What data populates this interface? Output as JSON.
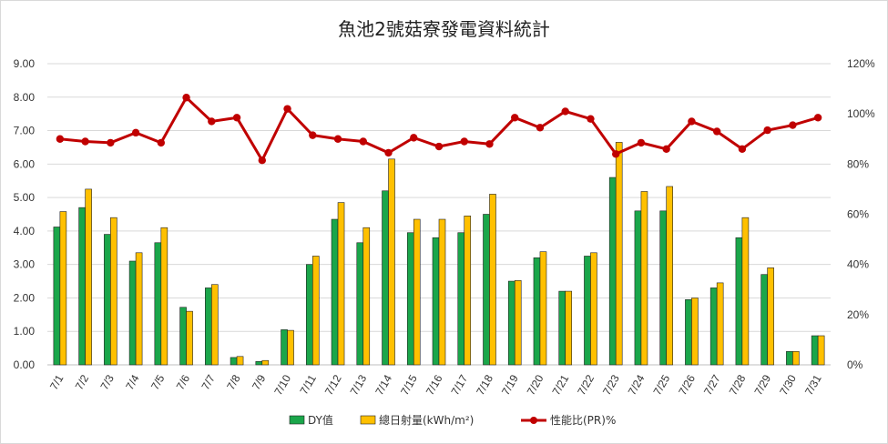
{
  "chart_data": {
    "type": "bar",
    "title": "魚池2號菇寮發電資料統計",
    "categories": [
      "7/1",
      "7/2",
      "7/3",
      "7/4",
      "7/5",
      "7/6",
      "7/7",
      "7/8",
      "7/9",
      "7/10",
      "7/11",
      "7/12",
      "7/13",
      "7/14",
      "7/15",
      "7/16",
      "7/17",
      "7/18",
      "7/19",
      "7/20",
      "7/21",
      "7/22",
      "7/23",
      "7/24",
      "7/25",
      "7/26",
      "7/27",
      "7/28",
      "7/29",
      "7/30",
      "7/31"
    ],
    "series": [
      {
        "name": "DY值",
        "type": "bar",
        "axis": "left",
        "color": "#1aa64a",
        "values": [
          4.12,
          4.7,
          3.9,
          3.1,
          3.65,
          1.72,
          2.3,
          0.22,
          0.1,
          1.05,
          3.0,
          4.35,
          3.65,
          5.2,
          3.95,
          3.8,
          3.95,
          4.5,
          2.5,
          3.2,
          2.2,
          3.25,
          5.6,
          4.6,
          4.6,
          1.95,
          2.3,
          3.8,
          2.7,
          0.4,
          0.87
        ]
      },
      {
        "name": "總日射量(kWh/m²)",
        "type": "bar",
        "axis": "left",
        "color": "#ffc000",
        "values": [
          4.58,
          5.25,
          4.4,
          3.35,
          4.1,
          1.6,
          2.4,
          0.25,
          0.13,
          1.03,
          3.25,
          4.85,
          4.1,
          6.15,
          4.35,
          4.35,
          4.45,
          5.1,
          2.52,
          3.38,
          2.2,
          3.35,
          6.65,
          5.18,
          5.33,
          2.0,
          2.45,
          4.4,
          2.9,
          0.4,
          0.87
        ]
      },
      {
        "name": "性能比(PR)%",
        "type": "line",
        "axis": "right",
        "color": "#c00000",
        "values": [
          90,
          89,
          88.5,
          92.5,
          88.5,
          106.5,
          97,
          98.5,
          81.5,
          102,
          91.5,
          90,
          89,
          84.5,
          90.5,
          87,
          89,
          88,
          98.5,
          94.5,
          101,
          98,
          84,
          88.5,
          86,
          97,
          93,
          86,
          93.5,
          95.5,
          98.5
        ]
      }
    ],
    "y_left": {
      "ticks": [
        "0.00",
        "1.00",
        "2.00",
        "3.00",
        "4.00",
        "5.00",
        "6.00",
        "7.00",
        "8.00",
        "9.00"
      ],
      "min": 0,
      "max": 9
    },
    "y_right": {
      "ticks": [
        "0%",
        "20%",
        "40%",
        "60%",
        "80%",
        "100%",
        "120%"
      ],
      "min": 0,
      "max": 120
    },
    "grid": true,
    "legend_position": "bottom"
  }
}
